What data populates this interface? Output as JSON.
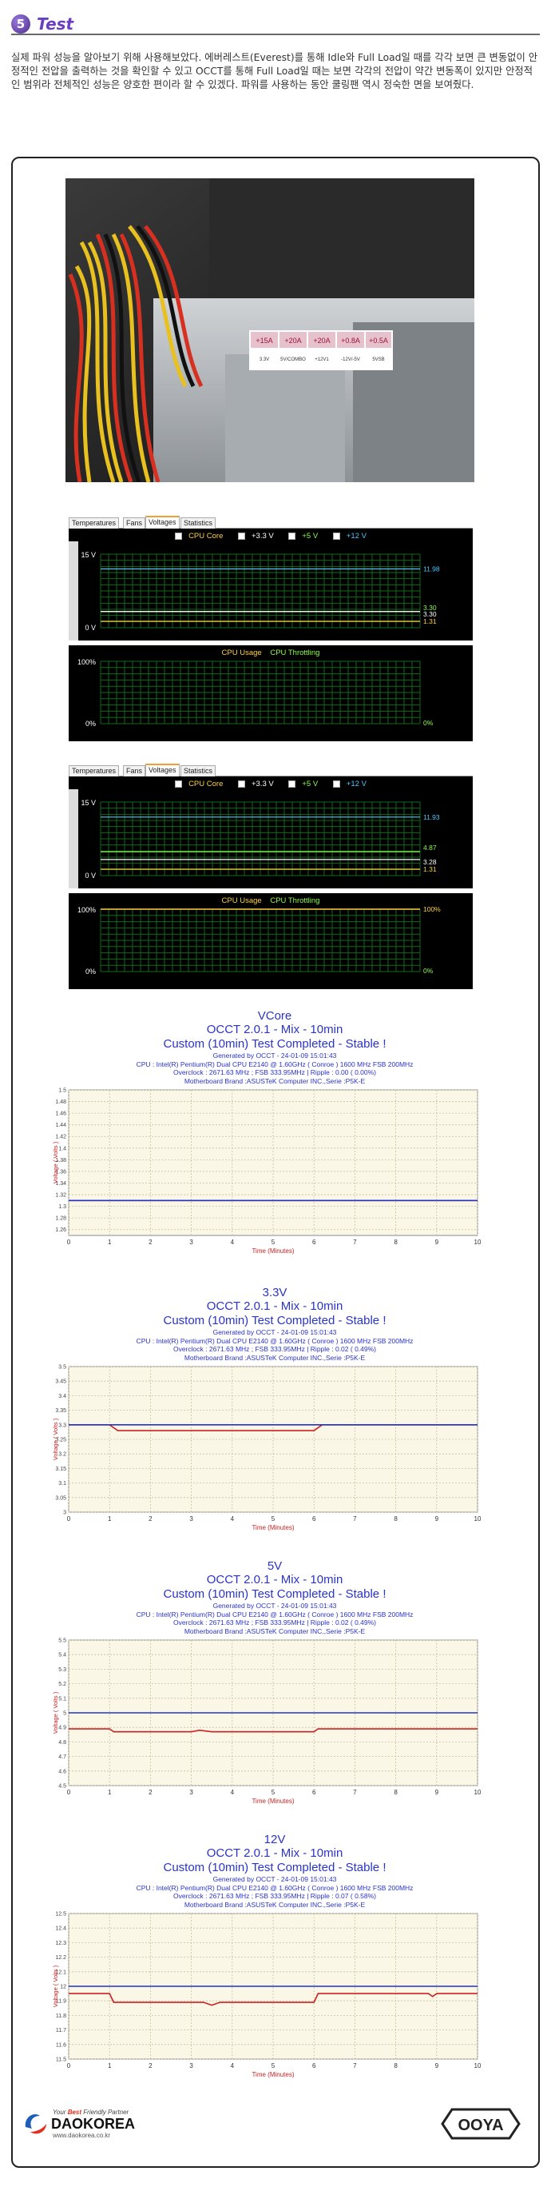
{
  "header": {
    "number": "5",
    "title": "Test"
  },
  "intro": "실제 파워 성능을 알아보기 위해 사용해보았다. 에버레스트(Everest)를 통해 Idle와 Full Load일 때를 각각 보면 큰 변동없이 안정적인 전압을 출력하는 것을 확인할 수 있고 OCCT를 통해 Full Load일 때는 보면 각각의 전압이 약간 변동폭이 있지만 안정적인 범위라 전체적인 성능은 양호한 편이라 할 수 있겠다. 파워를 사용하는 동안 쿨링팬 역시 정숙한 면을 보여줬다.",
  "photo": {
    "sticker_cells": [
      "+15A",
      "+20A",
      "+20A",
      "+0.8A",
      "+0.5A"
    ],
    "sticker_labels": [
      "3.3V",
      "5V/COMBO",
      "+12V1",
      "-12V/-5V",
      "5VSB"
    ]
  },
  "occt_panels": [
    {
      "tabs": [
        "Temperatures",
        "Fans",
        "Voltages",
        "Statistics"
      ],
      "legend": [
        "CPU Core",
        "+3.3 V",
        "+5 V",
        "+12 V"
      ],
      "voltage_axis": [
        "15 V",
        "0 V"
      ],
      "voltage_readouts": [
        "11.98",
        "3.30",
        "3.30",
        "1.31"
      ],
      "cpu_legend": [
        "CPU Usage",
        "CPU Throttling"
      ],
      "cpu_axis": [
        "100%",
        "0%"
      ],
      "cpu_readout": "0%"
    },
    {
      "tabs": [
        "Temperatures",
        "Fans",
        "Voltages",
        "Statistics"
      ],
      "legend": [
        "CPU Core",
        "+3.3 V",
        "+5 V",
        "+12 V"
      ],
      "voltage_axis": [
        "15 V",
        "0 V"
      ],
      "voltage_readouts": [
        "11.93",
        "4.87",
        "3.28",
        "1.31"
      ],
      "cpu_legend": [
        "CPU Usage",
        "CPU Throttling"
      ],
      "cpu_axis": [
        "100%",
        "0%"
      ],
      "cpu_readouts": [
        "100%",
        "0%"
      ]
    }
  ],
  "chart_data": [
    {
      "type": "line",
      "name": "VCore",
      "titles": [
        "VCore",
        "OCCT 2.0.1 - Mix - 10min",
        "Custom (10min) Test Completed - Stable !"
      ],
      "subs": [
        "Generated by OCCT - 24-01-09 15:01:43",
        "CPU : Intel(R) Pentium(R) Dual CPU E2140 @ 1.60GHz ( Conroe ) 1600 MHz FSB 200MHz",
        "Overclock : 2671.63 MHz ; FSB 333.95MHz | Ripple : 0.00 ( 0.00%)",
        "Motherboard Brand :ASUSTeK Computer INC.,Serie :P5K-E"
      ],
      "ylabel": "Voltage ( Volts )",
      "xlabel": "Time (Minutes)",
      "yticks": [
        "1.5",
        "1.48",
        "1.46",
        "1.44",
        "1.42",
        "1.4",
        "1.38",
        "1.36",
        "1.34",
        "1.32",
        "1.3",
        "1.28",
        "1.26"
      ],
      "ylim": [
        1.25,
        1.5
      ],
      "xticks": [
        "0",
        "1",
        "2",
        "3",
        "4",
        "5",
        "6",
        "7",
        "8",
        "9",
        "10"
      ],
      "series": [
        {
          "values_x": [
            0,
            10
          ],
          "values_y": [
            1.31,
            1.31
          ],
          "color": "#cc2222"
        },
        {
          "values_x": [
            0,
            10
          ],
          "values_y": [
            1.31,
            1.31
          ],
          "color": "#2233cc"
        }
      ]
    },
    {
      "type": "line",
      "name": "3.3V",
      "titles": [
        "3.3V",
        "OCCT 2.0.1 - Mix - 10min",
        "Custom (10min) Test Completed - Stable !"
      ],
      "subs": [
        "Generated by OCCT - 24-01-09 15:01:43",
        "CPU : Intel(R) Pentium(R) Dual CPU E2140 @ 1.60GHz ( Conroe ) 1600 MHz FSB 200MHz",
        "Overclock : 2671.63 MHz ; FSB 333.95MHz | Ripple : 0.02 ( 0.49%)",
        "Motherboard Brand :ASUSTeK Computer INC.,Serie :P5K-E"
      ],
      "ylabel": "Voltage ( Volts )",
      "xlabel": "Time (Minutes)",
      "yticks": [
        "3.5",
        "3.45",
        "3.4",
        "3.35",
        "3.3",
        "3.25",
        "3.2",
        "3.15",
        "3.1",
        "3.05",
        "3"
      ],
      "ylim": [
        3.0,
        3.5
      ],
      "xticks": [
        "0",
        "1",
        "2",
        "3",
        "4",
        "5",
        "6",
        "7",
        "8",
        "9",
        "10"
      ],
      "series": [
        {
          "values_x": [
            0,
            1.0,
            1.2,
            6.0,
            6.2,
            10
          ],
          "values_y": [
            3.3,
            3.3,
            3.28,
            3.28,
            3.3,
            3.3
          ],
          "color": "#cc2222"
        },
        {
          "values_x": [
            0,
            10
          ],
          "values_y": [
            3.3,
            3.3
          ],
          "color": "#2233cc"
        }
      ]
    },
    {
      "type": "line",
      "name": "5V",
      "titles": [
        "5V",
        "OCCT 2.0.1 - Mix - 10min",
        "Custom (10min) Test Completed - Stable !"
      ],
      "subs": [
        "Generated by OCCT - 24-01-09 15:01:43",
        "CPU : Intel(R) Pentium(R) Dual CPU E2140 @ 1.60GHz ( Conroe ) 1600 MHz FSB 200MHz",
        "Overclock : 2671.63 MHz ; FSB 333.95MHz | Ripple : 0.02 ( 0.49%)",
        "Motherboard Brand :ASUSTeK Computer INC.,Serie :P5K-E"
      ],
      "ylabel": "Voltage ( Volts )",
      "xlabel": "Time (Minutes)",
      "yticks": [
        "5.5",
        "5.4",
        "5.3",
        "5.2",
        "5.1",
        "5",
        "4.9",
        "4.8",
        "4.7",
        "4.6",
        "4.5"
      ],
      "ylim": [
        4.5,
        5.5
      ],
      "xticks": [
        "0",
        "1",
        "2",
        "3",
        "4",
        "5",
        "6",
        "7",
        "8",
        "9",
        "10"
      ],
      "series": [
        {
          "values_x": [
            0,
            1.0,
            1.1,
            3.0,
            3.2,
            3.5,
            3.8,
            6.0,
            6.1,
            10
          ],
          "values_y": [
            4.89,
            4.89,
            4.87,
            4.87,
            4.88,
            4.87,
            4.87,
            4.87,
            4.89,
            4.89
          ],
          "color": "#cc2222"
        },
        {
          "values_x": [
            0,
            10
          ],
          "values_y": [
            5.0,
            5.0
          ],
          "color": "#2233cc"
        }
      ]
    },
    {
      "type": "line",
      "name": "12V",
      "titles": [
        "12V",
        "OCCT 2.0.1 - Mix - 10min",
        "Custom (10min) Test Completed - Stable !"
      ],
      "subs": [
        "Generated by OCCT - 24-01-09 15:01:43",
        "CPU : Intel(R) Pentium(R) Dual CPU E2140 @ 1.60GHz ( Conroe ) 1600 MHz FSB 200MHz",
        "Overclock : 2671.63 MHz ; FSB 333.95MHz | Ripple : 0.07 ( 0.58%)",
        "Motherboard Brand :ASUSTeK Computer INC.,Serie :P5K-E"
      ],
      "ylabel": "Voltage ( Volts )",
      "xlabel": "Time (Minutes)",
      "yticks": [
        "12.5",
        "12.4",
        "12.3",
        "12.2",
        "12.1",
        "12",
        "11.9",
        "11.8",
        "11.7",
        "11.6",
        "11.5"
      ],
      "ylim": [
        11.5,
        12.5
      ],
      "xticks": [
        "0",
        "1",
        "2",
        "3",
        "4",
        "5",
        "6",
        "7",
        "8",
        "9",
        "10"
      ],
      "series": [
        {
          "values_x": [
            0,
            1.0,
            1.1,
            3.3,
            3.5,
            3.7,
            6.0,
            6.1,
            8.8,
            8.9,
            9.0,
            10
          ],
          "values_y": [
            11.95,
            11.95,
            11.89,
            11.89,
            11.87,
            11.89,
            11.89,
            11.95,
            11.95,
            11.93,
            11.95,
            11.95
          ],
          "color": "#cc2222"
        },
        {
          "values_x": [
            0,
            10
          ],
          "values_y": [
            12.0,
            12.0
          ],
          "color": "#2233cc"
        }
      ]
    }
  ],
  "footer": {
    "tagline_a": "Your",
    "tagline_b": "Best",
    "tagline_c": "Friendly Partner",
    "brand": "DAOKOREA",
    "url": "www.daokorea.co.kr",
    "mark": "OOYA"
  },
  "colors": {
    "accent": "#6a3fbf",
    "chart_title": "#2a34c8",
    "plot_bg": "#fbf7e6",
    "vgrid": "#1a8a2a"
  }
}
